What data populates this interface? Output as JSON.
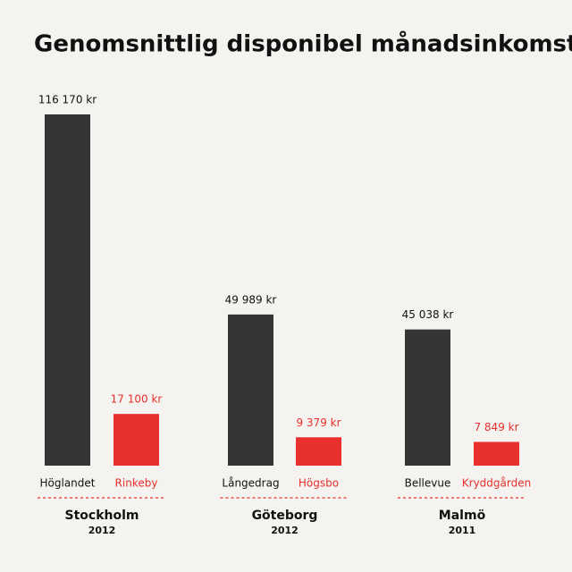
{
  "chart_data": {
    "type": "bar",
    "title": "Genomsnittlig disponibel månadsinkomst",
    "categories": [
      "Höglandet",
      "Rinkeby",
      "Långedrag",
      "Högsbo",
      "Bellevue",
      "Kryddgården"
    ],
    "values": [
      116170,
      17100,
      49989,
      9379,
      45038,
      7849
    ],
    "value_labels": [
      "116 170 kr",
      "17 100 kr",
      "49 989 kr",
      "9 379 kr",
      "45 038 kr",
      "7 849 kr"
    ],
    "colors": [
      "#353535",
      "#e8302e",
      "#353535",
      "#e8302e",
      "#353535",
      "#e8302e"
    ],
    "groups": [
      {
        "name": "Stockholm",
        "year": "2012"
      },
      {
        "name": "Göteborg",
        "year": "2012"
      },
      {
        "name": "Malmö",
        "year": "2011"
      }
    ]
  }
}
